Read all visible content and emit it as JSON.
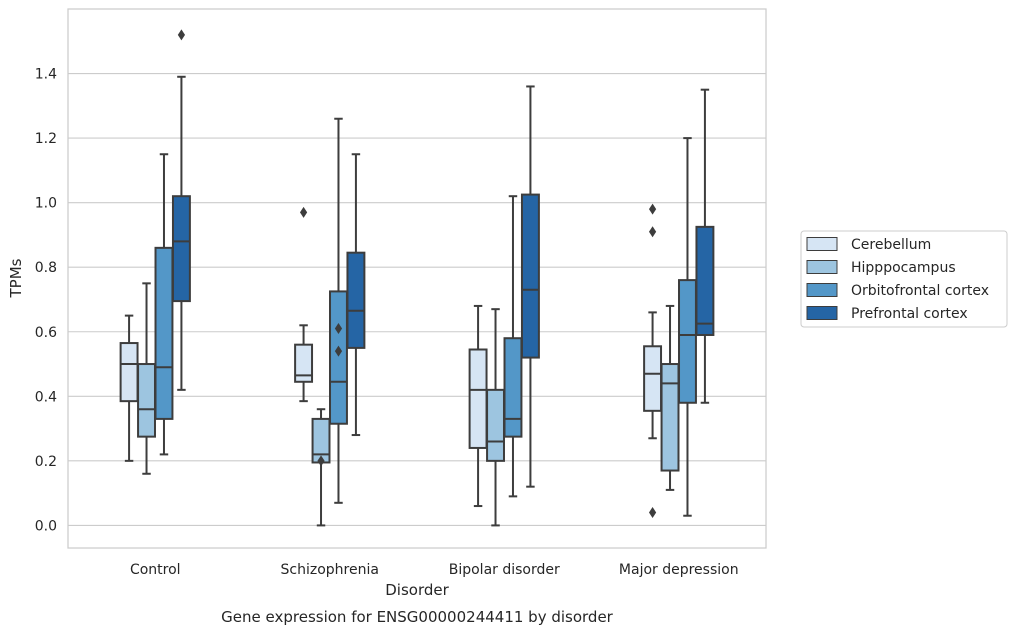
{
  "chart_data": {
    "type": "box",
    "title": "",
    "caption": "Gene expression for ENSG00000244411 by disorder",
    "xlabel": "Disorder",
    "ylabel": "TPMs",
    "ylim": [
      -0.07,
      1.6
    ],
    "yticks": [
      "0.0",
      "0.2",
      "0.4",
      "0.6",
      "0.8",
      "1.0",
      "1.2",
      "1.4"
    ],
    "grid": "horizontal",
    "legend_position": "right",
    "categories": [
      "Control",
      "Schizophrenia",
      "Bipolar disorder",
      "Major depression"
    ],
    "series": [
      {
        "name": "Cerebellum",
        "color": "#d6e5f4",
        "boxes": [
          {
            "whislo": 0.2,
            "q1": 0.385,
            "med": 0.5,
            "q3": 0.565,
            "whishi": 0.65,
            "fliers": []
          },
          {
            "whislo": 0.385,
            "q1": 0.445,
            "med": 0.465,
            "q3": 0.56,
            "whishi": 0.62,
            "fliers": [
              0.97
            ]
          },
          {
            "whislo": 0.06,
            "q1": 0.24,
            "med": 0.42,
            "q3": 0.545,
            "whishi": 0.68,
            "fliers": []
          },
          {
            "whislo": 0.27,
            "q1": 0.355,
            "med": 0.47,
            "q3": 0.555,
            "whishi": 0.66,
            "fliers": [
              0.98,
              0.91,
              0.04
            ]
          }
        ]
      },
      {
        "name": "Hipppocampus",
        "color": "#9dc5e0",
        "boxes": [
          {
            "whislo": 0.16,
            "q1": 0.275,
            "med": 0.36,
            "q3": 0.5,
            "whishi": 0.75,
            "fliers": []
          },
          {
            "whislo": 0.0,
            "q1": 0.195,
            "med": 0.22,
            "q3": 0.33,
            "whishi": 0.36,
            "fliers": [
              0.2
            ]
          },
          {
            "whislo": 0.0,
            "q1": 0.2,
            "med": 0.26,
            "q3": 0.42,
            "whishi": 0.67,
            "fliers": []
          },
          {
            "whislo": 0.11,
            "q1": 0.17,
            "med": 0.44,
            "q3": 0.5,
            "whishi": 0.68,
            "fliers": []
          }
        ]
      },
      {
        "name": "Orbitofrontal cortex",
        "color": "#5397c8",
        "boxes": [
          {
            "whislo": 0.22,
            "q1": 0.33,
            "med": 0.49,
            "q3": 0.86,
            "whishi": 1.15,
            "fliers": []
          },
          {
            "whislo": 0.07,
            "q1": 0.315,
            "med": 0.445,
            "q3": 0.725,
            "whishi": 1.26,
            "fliers": [
              0.61,
              0.54
            ]
          },
          {
            "whislo": 0.09,
            "q1": 0.275,
            "med": 0.33,
            "q3": 0.58,
            "whishi": 1.02,
            "fliers": []
          },
          {
            "whislo": 0.03,
            "q1": 0.38,
            "med": 0.59,
            "q3": 0.76,
            "whishi": 1.2,
            "fliers": []
          }
        ]
      },
      {
        "name": "Prefrontal cortex",
        "color": "#2565a5",
        "boxes": [
          {
            "whislo": 0.42,
            "q1": 0.695,
            "med": 0.88,
            "q3": 1.02,
            "whishi": 1.39,
            "fliers": [
              1.52
            ]
          },
          {
            "whislo": 0.28,
            "q1": 0.55,
            "med": 0.665,
            "q3": 0.845,
            "whishi": 1.15,
            "fliers": []
          },
          {
            "whislo": 0.12,
            "q1": 0.52,
            "med": 0.73,
            "q3": 1.025,
            "whishi": 1.36,
            "fliers": []
          },
          {
            "whislo": 0.38,
            "q1": 0.59,
            "med": 0.625,
            "q3": 0.925,
            "whishi": 1.35,
            "fliers": []
          }
        ]
      }
    ]
  }
}
